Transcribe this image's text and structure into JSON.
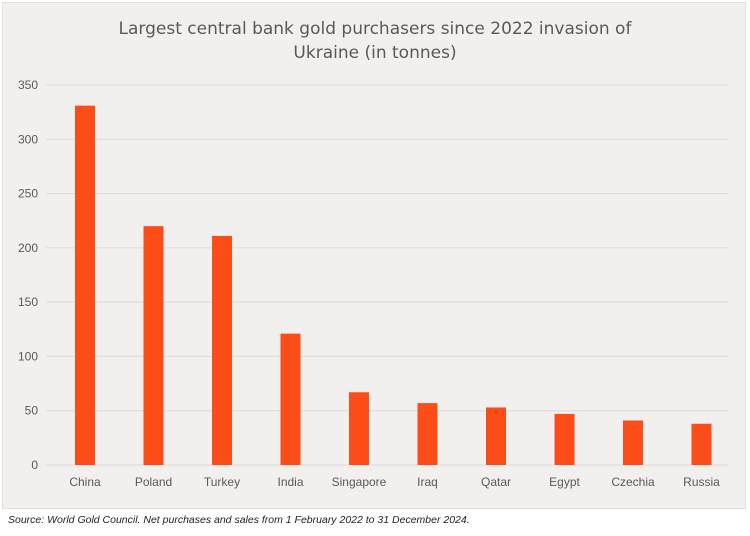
{
  "chart_data": {
    "type": "bar",
    "title_lines": [
      "Largest central bank gold purchasers since 2022 invasion of",
      "Ukraine (in tonnes)"
    ],
    "categories": [
      "China",
      "Poland",
      "Turkey",
      "India",
      "Singapore",
      "Iraq",
      "Qatar",
      "Egypt",
      "Czechia",
      "Russia"
    ],
    "values": [
      331,
      220,
      211,
      121,
      67,
      57,
      53,
      47,
      41,
      38
    ],
    "ylim": [
      0,
      350
    ],
    "yticks": [
      0,
      50,
      100,
      150,
      200,
      250,
      300,
      350
    ],
    "grid": true,
    "bar_color": "#fc4c17"
  },
  "source_note": "Source:  World Gold Council. Net purchases and sales from 1 February 2022 to 31 December 2024."
}
